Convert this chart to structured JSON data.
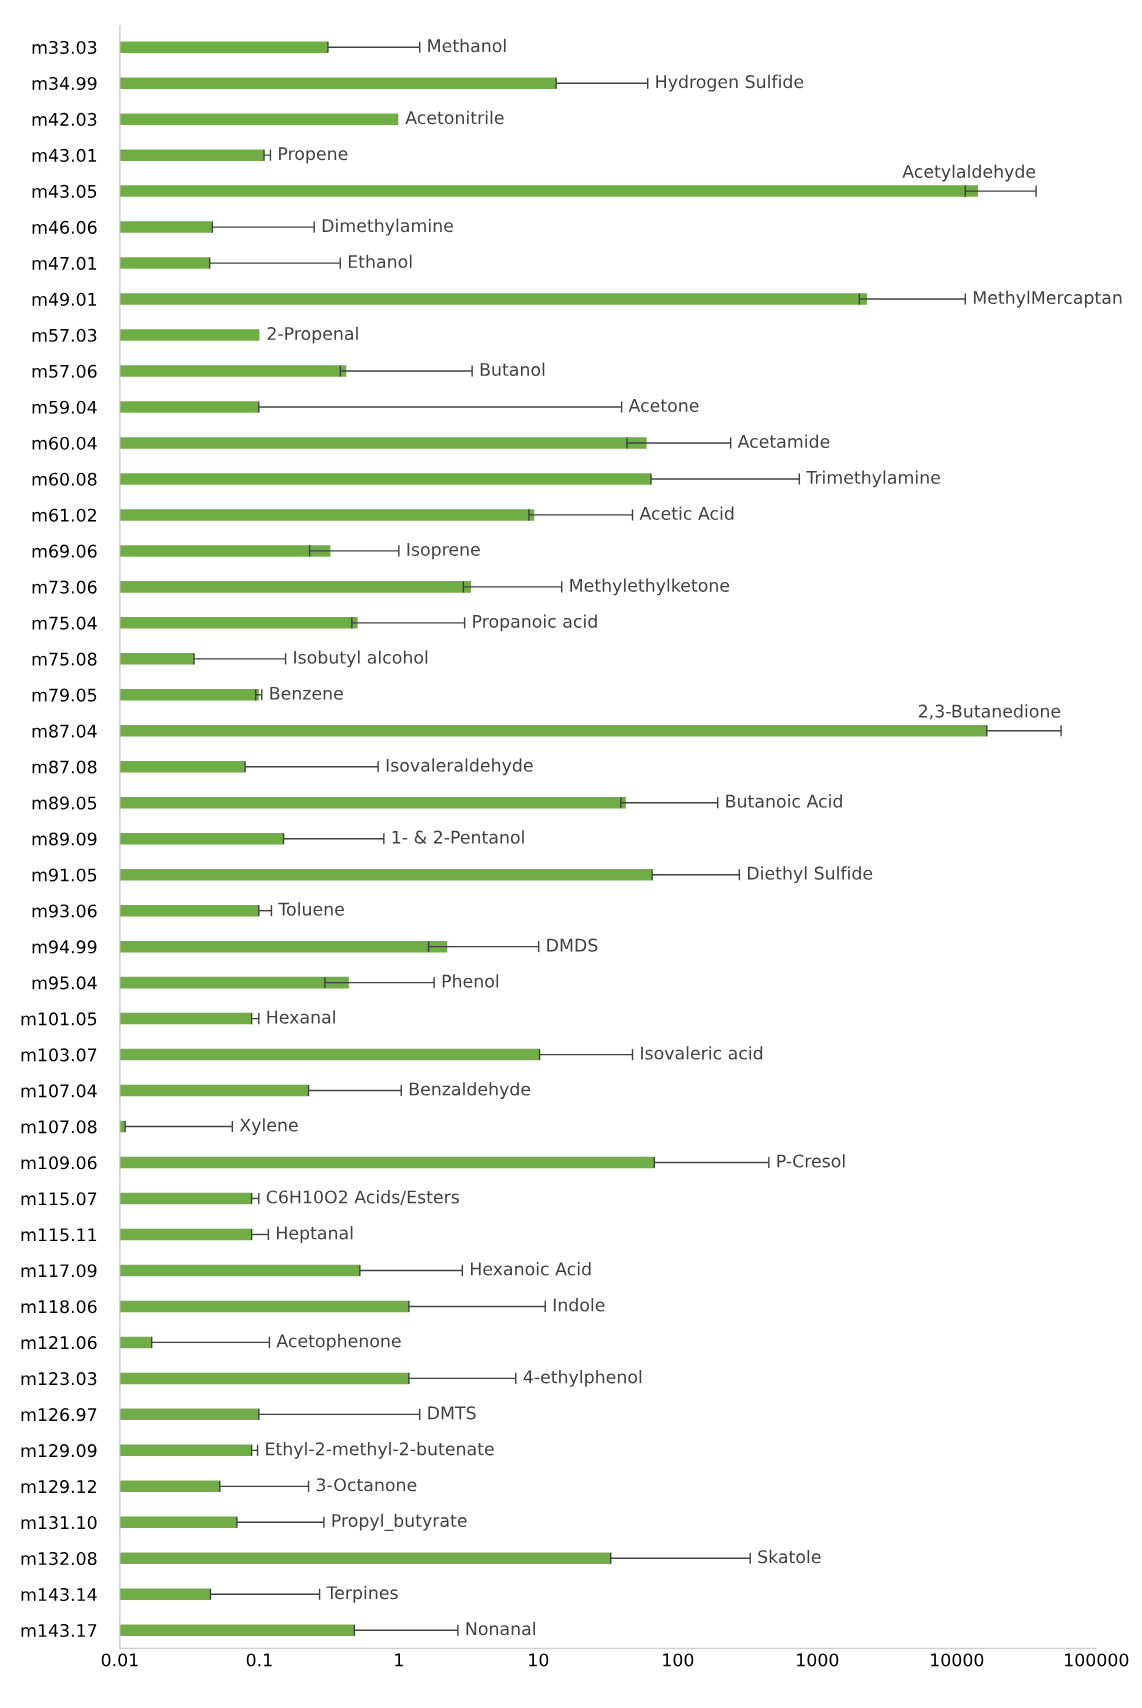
{
  "chart_data": {
    "type": "bar",
    "orientation": "horizontal",
    "log": "x",
    "grid": false,
    "categories": [
      "m33.03",
      "m34.99",
      "m42.03",
      "m43.01",
      "m43.05",
      "m46.06",
      "m47.01",
      "m49.01",
      "m57.03",
      "m57.06",
      "m59.04",
      "m60.04",
      "m60.08",
      "m61.02",
      "m69.06",
      "m73.06",
      "m75.04",
      "m75.08",
      "m79.05",
      "m87.04",
      "m87.08",
      "m89.05",
      "m89.09",
      "m91.05",
      "m93.06",
      "m94.99",
      "m95.04",
      "m101.05",
      "m103.07",
      "m107.04",
      "m107.08",
      "m109.06",
      "m115.07",
      "m115.11",
      "m117.09",
      "m118.06",
      "m121.06",
      "m123.03",
      "m126.97",
      "m129.09",
      "m129.12",
      "m131.10",
      "m132.08",
      "m143.14",
      "m143.17"
    ],
    "series": [
      {
        "color": "#70ad47",
        "values": [
          0.31,
          13.4,
          0.99,
          0.108,
          14200,
          0.046,
          0.044,
          2270,
          0.1,
          0.42,
          0.099,
          59.7,
          64.2,
          9.35,
          0.323,
          3.29,
          0.506,
          0.034,
          0.099,
          16400,
          0.079,
          42.4,
          0.149,
          65.4,
          0.099,
          2.22,
          0.438,
          0.088,
          10.2,
          0.225,
          0.0109,
          67.8,
          0.088,
          0.088,
          0.525,
          1.18,
          0.0169,
          1.18,
          0.099,
          0.088,
          0.052,
          0.069,
          33.0,
          0.0446,
          0.48
        ],
        "errors": [
          [
            0.31,
            1.41
          ],
          [
            13.4,
            60.8
          ],
          null,
          [
            0.108,
            0.12
          ],
          [
            11500,
            37000
          ],
          [
            0.046,
            0.247
          ],
          [
            0.044,
            0.38
          ],
          [
            2000,
            11500
          ],
          null,
          [
            0.38,
            3.35
          ],
          [
            0.099,
            39.5
          ],
          [
            43.2,
            239
          ],
          [
            64.2,
            743
          ],
          [
            8.55,
            47.3
          ],
          [
            0.229,
            1.0
          ],
          [
            2.9,
            14.7
          ],
          [
            0.46,
            2.96
          ],
          [
            0.034,
            0.154
          ],
          [
            0.094,
            0.104
          ],
          [
            16400,
            55900
          ],
          [
            0.079,
            0.71
          ],
          [
            39,
            193
          ],
          [
            0.149,
            0.78
          ],
          [
            65.4,
            276
          ],
          [
            0.099,
            0.122
          ],
          [
            1.63,
            10.05
          ],
          [
            0.295,
            1.79
          ],
          [
            0.088,
            0.099
          ],
          [
            10.2,
            47.3
          ],
          [
            0.225,
            1.04
          ],
          [
            0.0109,
            0.064
          ],
          [
            67.8,
            449
          ],
          [
            0.088,
            0.099
          ],
          [
            0.088,
            0.116
          ],
          [
            0.525,
            2.85
          ],
          [
            1.18,
            11.2
          ],
          [
            0.0169,
            0.118
          ],
          [
            1.18,
            6.89
          ],
          [
            0.099,
            1.41
          ],
          [
            0.088,
            0.097
          ],
          [
            0.052,
            0.225
          ],
          [
            0.069,
            0.29
          ],
          [
            33.0,
            330
          ],
          [
            0.0446,
            0.27
          ],
          [
            0.48,
            2.65
          ]
        ]
      }
    ],
    "xlim": [
      0.01,
      100000
    ],
    "xticks": [
      0.01,
      0.1,
      1,
      10,
      100,
      1000,
      10000,
      100000
    ],
    "annotations": [
      {
        "text": "Methanol",
        "x": 1.41,
        "y": "m33.03"
      },
      {
        "text": "Hydrogen Sulfide",
        "x": 60.8,
        "y": "m34.99"
      },
      {
        "text": "Acetonitrile",
        "x": 0.99,
        "y": "m42.03"
      },
      {
        "text": "Propene",
        "x": 0.12,
        "y": "m43.01"
      },
      {
        "text": "Acetylaldehyde",
        "x": 37000,
        "y": "m43.05"
      },
      {
        "text": "Dimethylamine",
        "x": 0.247,
        "y": "m46.06"
      },
      {
        "text": "Ethanol",
        "x": 0.38,
        "y": "m47.01"
      },
      {
        "text": "MethylMercaptan",
        "x": 11500,
        "y": "m49.01"
      },
      {
        "text": "2-Propenal",
        "x": 0.1,
        "y": "m57.03"
      },
      {
        "text": "Butanol",
        "x": 3.35,
        "y": "m57.06"
      },
      {
        "text": "Acetone",
        "x": 39.5,
        "y": "m59.04"
      },
      {
        "text": "Acetamide",
        "x": 239,
        "y": "m60.04"
      },
      {
        "text": "Trimethylamine",
        "x": 743,
        "y": "m60.08"
      },
      {
        "text": "Acetic Acid",
        "x": 47.3,
        "y": "m61.02"
      },
      {
        "text": "Isoprene",
        "x": 1.0,
        "y": "m69.06"
      },
      {
        "text": "Methylethylketone",
        "x": 14.7,
        "y": "m73.06"
      },
      {
        "text": "Propanoic acid",
        "x": 2.96,
        "y": "m75.04"
      },
      {
        "text": "Isobutyl alcohol",
        "x": 0.154,
        "y": "m75.08"
      },
      {
        "text": "Benzene",
        "x": 0.104,
        "y": "m79.05"
      },
      {
        "text": "2,3-Butanedione",
        "x": 55900,
        "y": "m87.04"
      },
      {
        "text": "Isovaleraldehyde",
        "x": 0.71,
        "y": "m87.08"
      },
      {
        "text": "Butanoic Acid",
        "x": 193,
        "y": "m89.05"
      },
      {
        "text": "1- & 2-Pentanol",
        "x": 0.78,
        "y": "m89.09"
      },
      {
        "text": "Diethyl Sulfide",
        "x": 276,
        "y": "m91.05"
      },
      {
        "text": "Toluene",
        "x": 0.122,
        "y": "m93.06"
      },
      {
        "text": "DMDS",
        "x": 10.05,
        "y": "m94.99"
      },
      {
        "text": "Phenol",
        "x": 1.79,
        "y": "m95.04"
      },
      {
        "text": "Hexanal",
        "x": 0.099,
        "y": "m101.05"
      },
      {
        "text": "Isovaleric acid",
        "x": 47.3,
        "y": "m103.07"
      },
      {
        "text": "Benzaldehyde",
        "x": 1.04,
        "y": "m107.04"
      },
      {
        "text": "Xylene",
        "x": 0.064,
        "y": "m107.08"
      },
      {
        "text": "P-Cresol",
        "x": 449,
        "y": "m109.06"
      },
      {
        "text": "C6H10O2 Acids/Esters",
        "x": 0.099,
        "y": "m115.07"
      },
      {
        "text": "Heptanal",
        "x": 0.116,
        "y": "m115.11"
      },
      {
        "text": "Hexanoic Acid",
        "x": 2.85,
        "y": "m117.09"
      },
      {
        "text": "Indole",
        "x": 11.2,
        "y": "m118.06"
      },
      {
        "text": "Acetophenone",
        "x": 0.118,
        "y": "m121.06"
      },
      {
        "text": "4-ethylphenol",
        "x": 6.89,
        "y": "m123.03"
      },
      {
        "text": "DMTS",
        "x": 1.41,
        "y": "m126.97"
      },
      {
        "text": "Ethyl-2-methyl-2-butenate",
        "x": 0.097,
        "y": "m129.09"
      },
      {
        "text": "3-Octanone",
        "x": 0.225,
        "y": "m129.12"
      },
      {
        "text": "Propyl_butyrate",
        "x": 0.29,
        "y": "m131.10"
      },
      {
        "text": "Skatole",
        "x": 330,
        "y": "m132.08"
      },
      {
        "text": "Terpines",
        "x": 0.27,
        "y": "m143.14"
      },
      {
        "text": "Nonanal",
        "x": 2.65,
        "y": "m143.17"
      }
    ]
  }
}
